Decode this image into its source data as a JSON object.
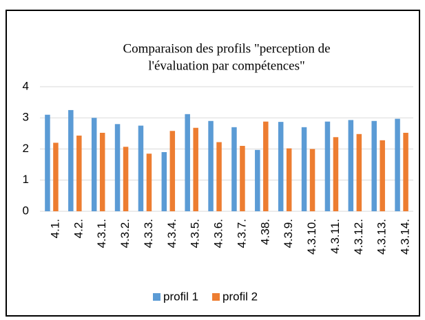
{
  "chart_data": {
    "type": "bar",
    "title_lines": [
      "Comparaison des profils \"perception de",
      "l'évaluation par compétences\""
    ],
    "categories": [
      "4.1.",
      "4.2.",
      "4.3.1.",
      "4.3.2.",
      "4.3.3.",
      "4.3.4.",
      "4.3.5.",
      "4.3.6.",
      "4.3.7.",
      "4.38.",
      "4.3.9.",
      "4.3.10.",
      "4.3.11.",
      "4.3.12.",
      "4.3.13.",
      "4.3.14."
    ],
    "series": [
      {
        "name": "profil 1",
        "color": "#5b9bd5",
        "values": [
          3.1,
          3.25,
          3.0,
          2.8,
          2.75,
          1.9,
          3.12,
          2.9,
          2.7,
          1.97,
          2.87,
          2.7,
          2.88,
          2.93,
          2.9,
          2.97
        ]
      },
      {
        "name": "profil 2",
        "color": "#ed7d31",
        "values": [
          2.2,
          2.43,
          2.52,
          2.07,
          1.85,
          2.58,
          2.68,
          2.22,
          2.1,
          2.88,
          2.02,
          2.0,
          2.38,
          2.48,
          2.28,
          2.52
        ]
      }
    ],
    "ylim": [
      0,
      4
    ],
    "yticks": [
      0,
      1,
      2,
      3,
      4
    ],
    "grid": true,
    "legend": "bottom"
  }
}
